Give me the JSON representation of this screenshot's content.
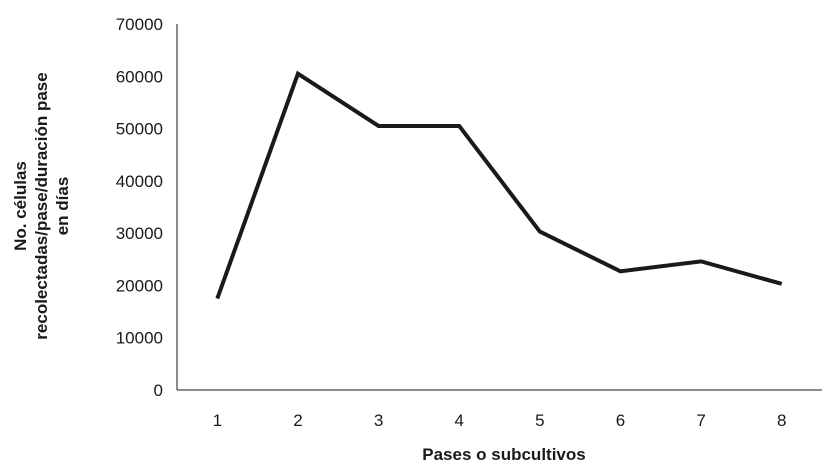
{
  "chart_data": {
    "type": "line",
    "title": "",
    "xlabel": "Pases o subcultivos",
    "ylabel_lines": [
      "No. células",
      "recolectadas/pase/duración pase",
      "en días"
    ],
    "categories": [
      "1",
      "2",
      "3",
      "4",
      "5",
      "6",
      "7",
      "8"
    ],
    "series": [
      {
        "values": [
          17500,
          60500,
          50500,
          50500,
          30300,
          22700,
          24600,
          20300
        ],
        "color": "#1a1a1a"
      }
    ],
    "ylim": [
      0,
      70000
    ],
    "yticks": [
      "0",
      "10000",
      "20000",
      "30000",
      "40000",
      "50000",
      "60000",
      "70000"
    ],
    "grid": false,
    "legend": "none"
  }
}
